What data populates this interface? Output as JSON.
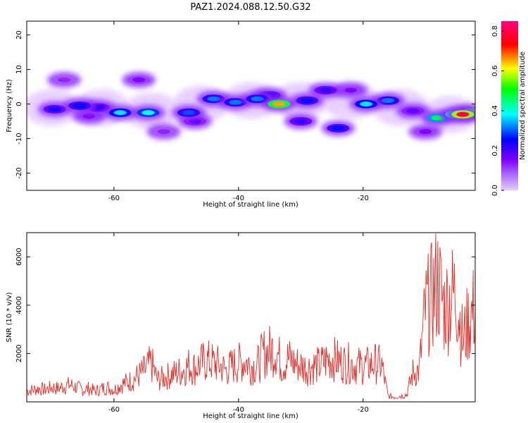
{
  "title": "PAZ1.2024.088.12.50.G32",
  "chart_data": [
    {
      "type": "heatmap",
      "xlabel": "Height of straight line (km)",
      "ylabel": "Frequency (Hz)",
      "xlim": [
        -74,
        -2
      ],
      "ylim": [
        -25,
        24
      ],
      "xticks": [
        -60,
        -40,
        -20
      ],
      "yticks": [
        -20,
        -10,
        0,
        10,
        20
      ],
      "colorbar": {
        "label": "Normalized spectral amplitude",
        "range": [
          0.0,
          0.85
        ],
        "ticks": [
          "0.0",
          "0.2",
          "0.4",
          "0.6",
          "0.8"
        ],
        "colormap": [
          "#e6ccff",
          "#7f00ff",
          "#0000ff",
          "#00ffff",
          "#00ff00",
          "#ffff00",
          "#ff0000",
          "#ff0080"
        ]
      },
      "blobs": [
        {
          "x": -69.5,
          "y": -1.5,
          "value": 0.22
        },
        {
          "x": -65.5,
          "y": -0.5,
          "value": 0.25
        },
        {
          "x": -62.5,
          "y": -1.0,
          "value": 0.2
        },
        {
          "x": -59.0,
          "y": -2.5,
          "value": 0.35
        },
        {
          "x": -54.5,
          "y": -2.5,
          "value": 0.38
        },
        {
          "x": -48.0,
          "y": -2.5,
          "value": 0.28
        },
        {
          "x": -44.0,
          "y": 1.5,
          "value": 0.3
        },
        {
          "x": -40.5,
          "y": 0.5,
          "value": 0.3
        },
        {
          "x": -37.0,
          "y": 1.5,
          "value": 0.3
        },
        {
          "x": -33.5,
          "y": 0.0,
          "value": 0.65
        },
        {
          "x": -29.0,
          "y": 1.0,
          "value": 0.25
        },
        {
          "x": -26.0,
          "y": 4.0,
          "value": 0.2
        },
        {
          "x": -24.0,
          "y": -7.0,
          "value": 0.25
        },
        {
          "x": -19.5,
          "y": 0.0,
          "value": 0.35
        },
        {
          "x": -16.0,
          "y": 1.0,
          "value": 0.3
        },
        {
          "x": -8.0,
          "y": -4.0,
          "value": 0.45
        },
        {
          "x": -5.0,
          "y": -3.0,
          "value": 0.55
        },
        {
          "x": -4.0,
          "y": -3.0,
          "value": 0.8
        },
        {
          "x": -2.5,
          "y": -2.5,
          "value": 0.55
        },
        {
          "x": -64.0,
          "y": -3.5,
          "value": 0.12
        },
        {
          "x": -56.0,
          "y": 7.0,
          "value": 0.12
        },
        {
          "x": -68.0,
          "y": 7.0,
          "value": 0.1
        },
        {
          "x": -52.0,
          "y": -8.0,
          "value": 0.1
        },
        {
          "x": -47.0,
          "y": -5.0,
          "value": 0.15
        },
        {
          "x": -35.0,
          "y": 2.5,
          "value": 0.2
        },
        {
          "x": -30.0,
          "y": -5.0,
          "value": 0.2
        },
        {
          "x": -22.0,
          "y": 4.0,
          "value": 0.12
        },
        {
          "x": -12.0,
          "y": -2.0,
          "value": 0.15
        },
        {
          "x": -10.0,
          "y": -8.0,
          "value": 0.12
        }
      ]
    },
    {
      "type": "line",
      "xlabel": "Height of straight line (km)",
      "ylabel": "SNR (10 * v/v)",
      "xlim": [
        -74,
        -2
      ],
      "ylim": [
        0,
        7000
      ],
      "xticks": [
        -60,
        -40,
        -20
      ],
      "yticks": [
        2000,
        4000,
        6000
      ],
      "color": "#e0302a",
      "series": [
        {
          "x": [
            -74,
            -73,
            -72,
            -71,
            -70,
            -69,
            -68,
            -67,
            -66,
            -65,
            -64,
            -63,
            -62,
            -61,
            -60,
            -59,
            -58,
            -57,
            -56,
            -55,
            -54,
            -53,
            -52,
            -51,
            -50,
            -49,
            -48,
            -47,
            -46,
            -45,
            -44,
            -43,
            -42,
            -41,
            -40,
            -39,
            -38,
            -37,
            -36,
            -35,
            -34,
            -33,
            -32,
            -31,
            -30,
            -29,
            -28,
            -27,
            -26,
            -25,
            -24,
            -23,
            -22,
            -21,
            -20,
            -19,
            -18,
            -17,
            -16,
            -15,
            -14,
            -13,
            -12,
            -11,
            -10,
            -9,
            -8,
            -7,
            -6,
            -5,
            -4,
            -3,
            -2
          ],
          "y": [
            450,
            500,
            550,
            500,
            600,
            550,
            650,
            700,
            600,
            500,
            550,
            450,
            550,
            600,
            500,
            700,
            800,
            900,
            1100,
            1300,
            1600,
            900,
            1000,
            1100,
            1200,
            1300,
            1500,
            1400,
            1600,
            1700,
            1600,
            1500,
            1300,
            1500,
            1600,
            1700,
            1500,
            1500,
            2000,
            2100,
            2200,
            1500,
            1800,
            1600,
            1500,
            1400,
            1500,
            1500,
            1700,
            1800,
            1700,
            1600,
            1600,
            1500,
            1500,
            1500,
            1600,
            1500,
            250,
            200,
            250,
            300,
            1200,
            1300,
            3800,
            4300,
            5000,
            3900,
            4300,
            4500,
            2500,
            3400,
            3900
          ]
        }
      ]
    }
  ]
}
